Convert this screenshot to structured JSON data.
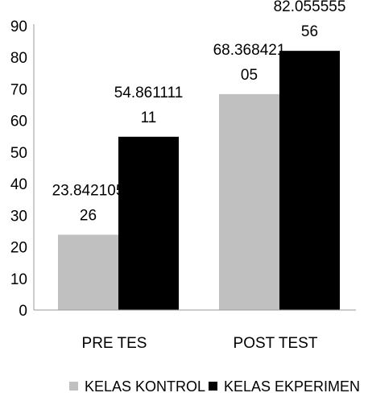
{
  "chart_data": {
    "type": "bar",
    "title": "",
    "xlabel": "",
    "ylabel": "",
    "ylim": [
      0,
      90
    ],
    "yticks": [
      0,
      10,
      20,
      30,
      40,
      50,
      60,
      70,
      80,
      90
    ],
    "grid": false,
    "legend_position": "bottom",
    "categories": [
      "PRE TES",
      "POST TEST"
    ],
    "series": [
      {
        "name": "KELAS KONTROL",
        "color": "#c0c0c0",
        "values": [
          23.84210526,
          68.36842105
        ],
        "labels": [
          [
            "23.842105",
            "26"
          ],
          [
            "68.368421",
            "05"
          ]
        ]
      },
      {
        "name": "KELAS EKPERIMEN",
        "color": "#000000",
        "values": [
          54.86111111,
          82.05555556
        ],
        "labels": [
          [
            "54.861111",
            "11"
          ],
          [
            "82.055555",
            "56"
          ]
        ]
      }
    ]
  }
}
